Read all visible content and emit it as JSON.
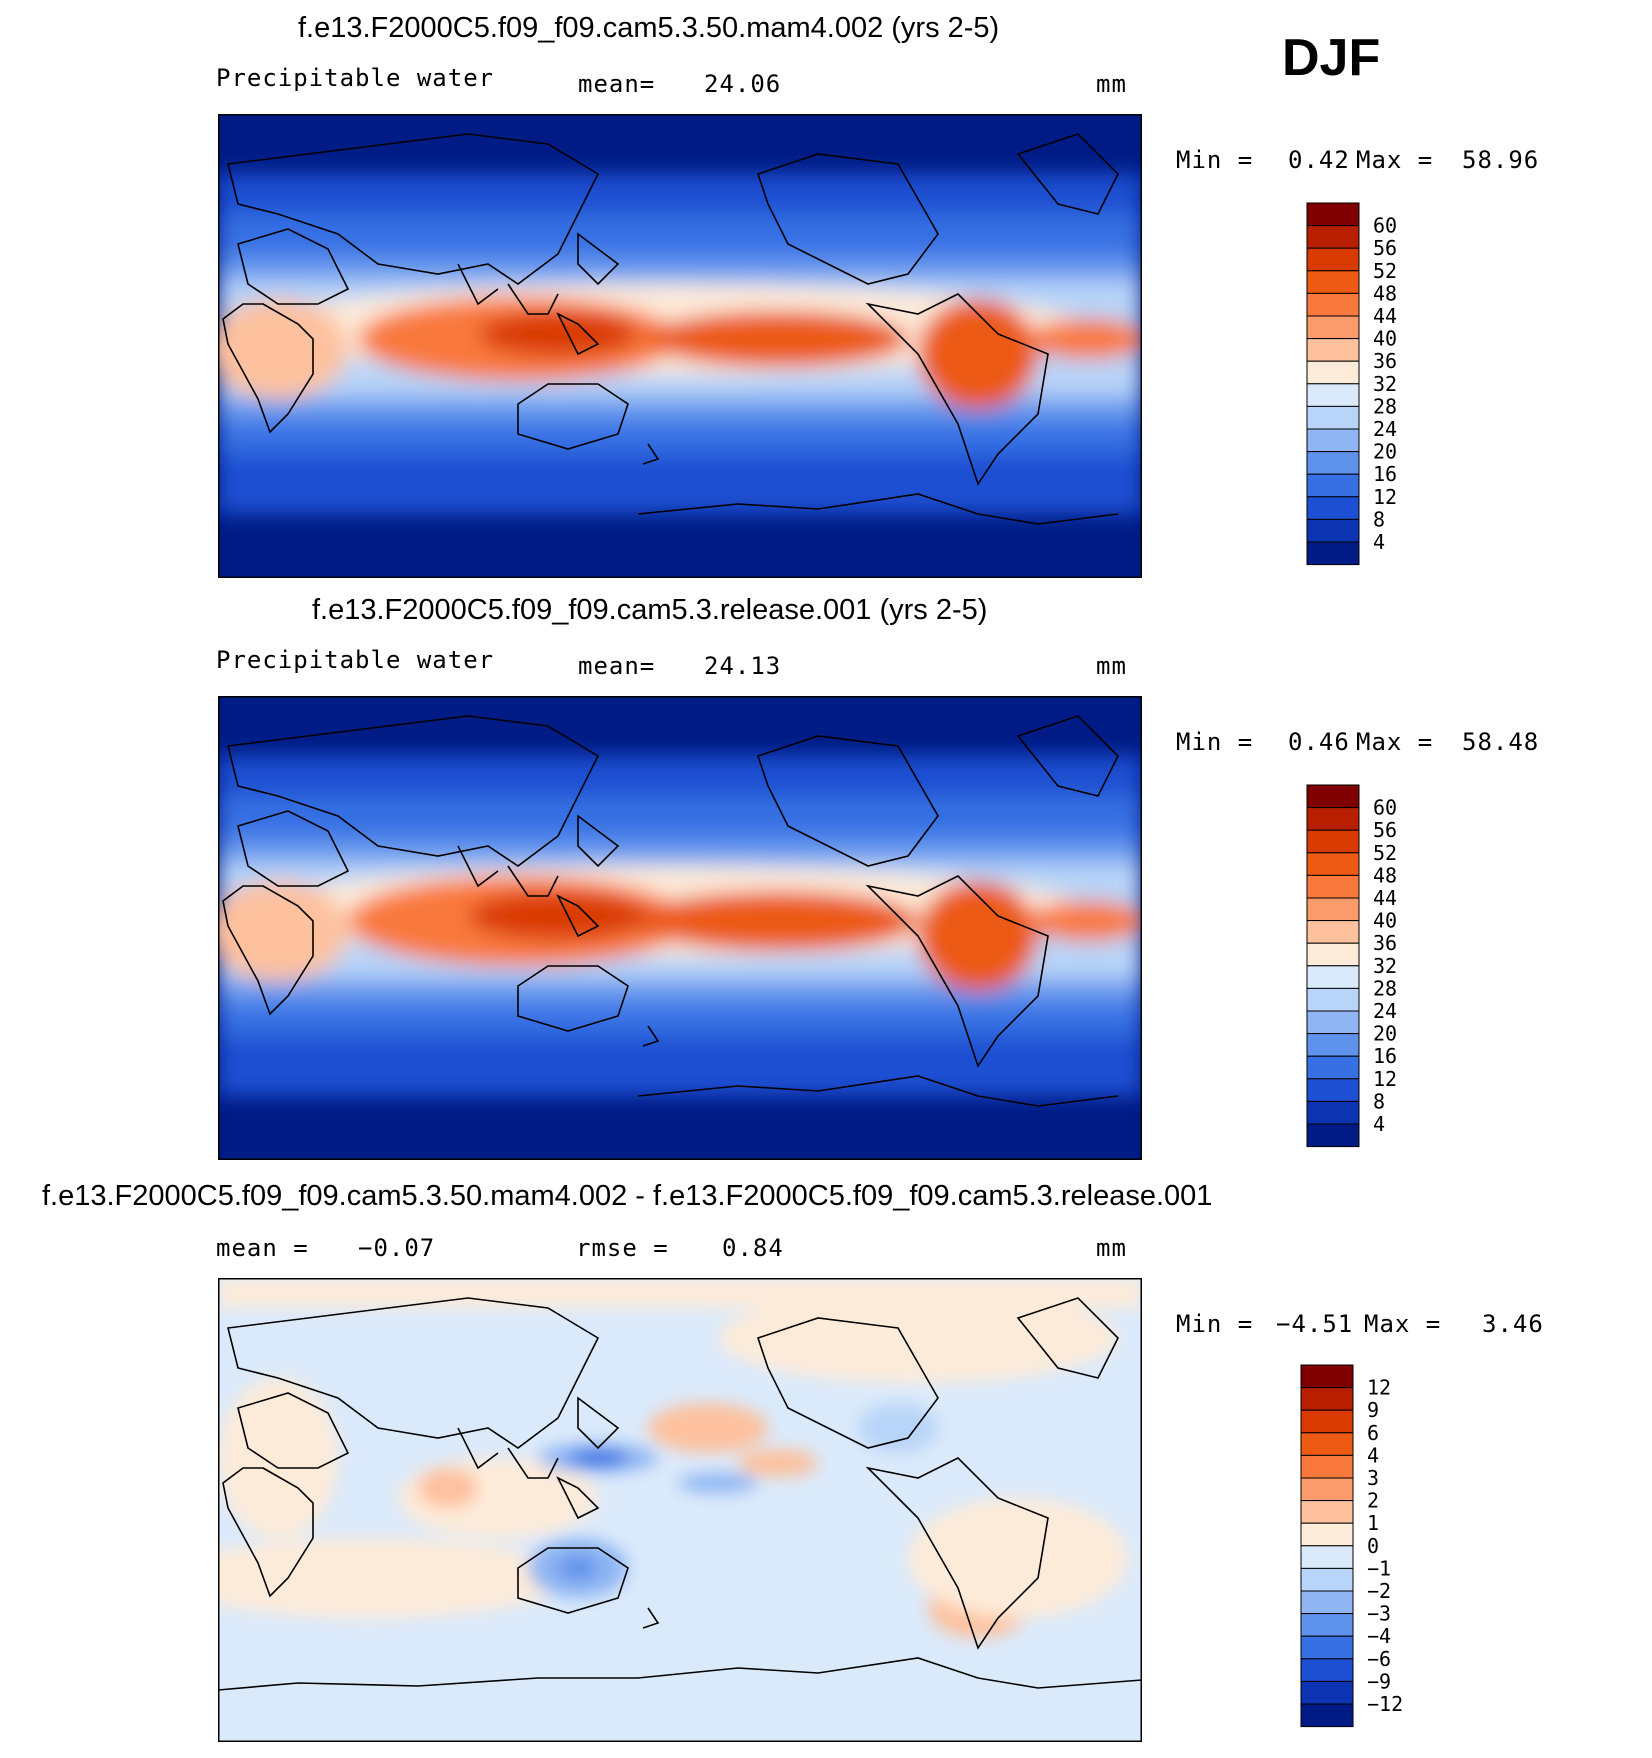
{
  "season": "DJF",
  "chart_data": [
    {
      "type": "heatmap",
      "title": "f.e13.F2000C5.f09_f09.cam5.3.50.mam4.002 (yrs 2-5)",
      "variable": "Precipitable water",
      "stat_label": "mean=",
      "stat_value": "24.06",
      "units": "mm",
      "min_label": "Min =",
      "min_value": "0.42",
      "max_label": "Max =",
      "max_value": "58.96",
      "colorbar": {
        "labels": [
          "60",
          "56",
          "52",
          "48",
          "44",
          "40",
          "36",
          "32",
          "28",
          "24",
          "20",
          "16",
          "12",
          "8",
          "4"
        ],
        "colors": [
          "#7f0000",
          "#b81f00",
          "#d93a00",
          "#ec5a14",
          "#f9793c",
          "#fb9a6a",
          "#fdc19e",
          "#fdebd9",
          "#dbeafb",
          "#b8d4f8",
          "#8fb6f3",
          "#5f92ec",
          "#3670e3",
          "#1c4fd2",
          "#0c34b2",
          "#001b85"
        ]
      }
    },
    {
      "type": "heatmap",
      "title": "f.e13.F2000C5.f09_f09.cam5.3.release.001 (yrs 2-5)",
      "variable": "Precipitable water",
      "stat_label": "mean=",
      "stat_value": "24.13",
      "units": "mm",
      "min_label": "Min =",
      "min_value": "0.46",
      "max_label": "Max =",
      "max_value": "58.48",
      "colorbar": {
        "labels": [
          "60",
          "56",
          "52",
          "48",
          "44",
          "40",
          "36",
          "32",
          "28",
          "24",
          "20",
          "16",
          "12",
          "8",
          "4"
        ],
        "colors": [
          "#7f0000",
          "#b81f00",
          "#d93a00",
          "#ec5a14",
          "#f9793c",
          "#fb9a6a",
          "#fdc19e",
          "#fdebd9",
          "#dbeafb",
          "#b8d4f8",
          "#8fb6f3",
          "#5f92ec",
          "#3670e3",
          "#1c4fd2",
          "#0c34b2",
          "#001b85"
        ]
      }
    },
    {
      "type": "heatmap",
      "title": "f.e13.F2000C5.f09_f09.cam5.3.50.mam4.002 - f.e13.F2000C5.f09_f09.cam5.3.release.001",
      "mean_label": "mean =",
      "mean_value": "−0.07",
      "rmse_label": "rmse =",
      "rmse_value": "0.84",
      "units": "mm",
      "min_label": "Min =",
      "min_value": "−4.51",
      "max_label": "Max =",
      "max_value": "3.46",
      "colorbar": {
        "labels": [
          "12",
          "9",
          "6",
          "4",
          "3",
          "2",
          "1",
          "0",
          "−1",
          "−2",
          "−3",
          "−4",
          "−6",
          "−9",
          "−12"
        ],
        "colors": [
          "#7f0000",
          "#b81f00",
          "#d93a00",
          "#ec5a14",
          "#f9793c",
          "#fb9a6a",
          "#fdc19e",
          "#fdebd9",
          "#dbeafb",
          "#b8d4f8",
          "#8fb6f3",
          "#5f92ec",
          "#3670e3",
          "#1c4fd2",
          "#0c34b2",
          "#001b85"
        ]
      }
    }
  ]
}
